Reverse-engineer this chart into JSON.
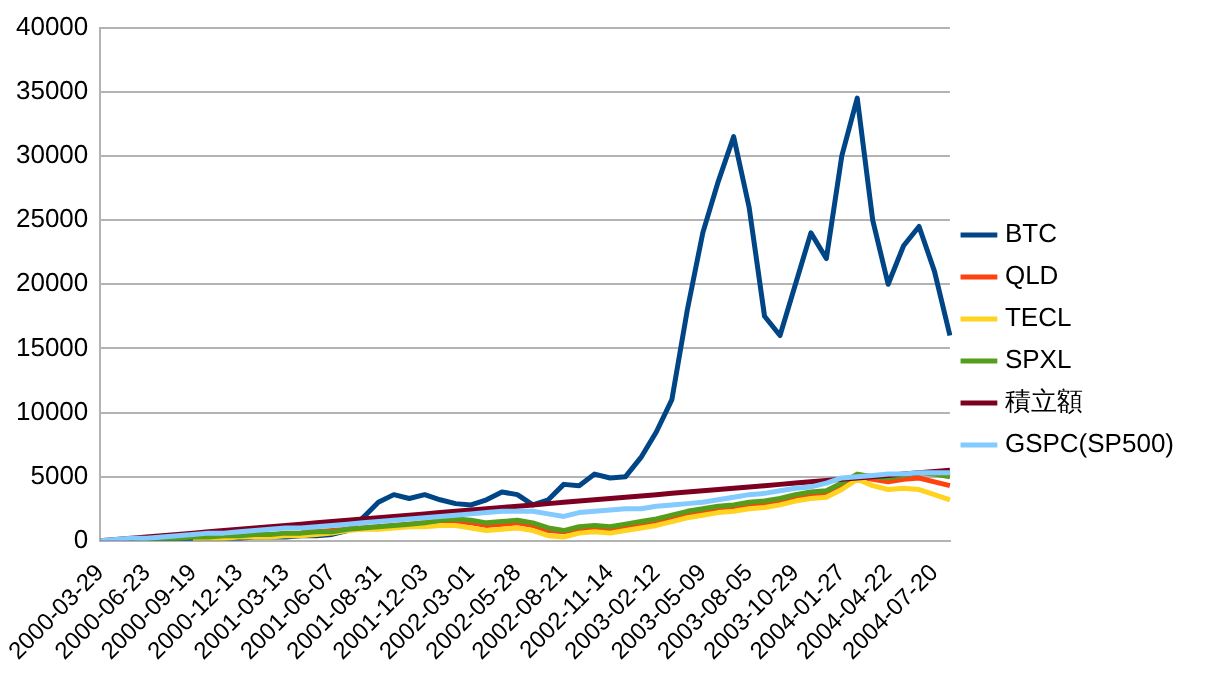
{
  "chart_data": {
    "type": "line",
    "categories": [
      "2000-03-29",
      null,
      null,
      "2000-06-23",
      null,
      null,
      "2000-09-19",
      null,
      null,
      "2000-12-13",
      null,
      null,
      "2001-03-13",
      null,
      null,
      "2001-06-07",
      null,
      null,
      "2001-08-31",
      null,
      null,
      "2001-12-03",
      null,
      null,
      "2002-03-01",
      null,
      null,
      "2002-05-28",
      null,
      null,
      "2002-08-21",
      null,
      null,
      "2002-11-14",
      null,
      null,
      "2003-02-12",
      null,
      null,
      "2003-05-09",
      null,
      null,
      "2003-08-05",
      null,
      null,
      "2003-10-29",
      null,
      null,
      "2004-01-27",
      null,
      null,
      "2004-04-22",
      null,
      null,
      "2004-07-20",
      null
    ],
    "series": [
      {
        "name": "BTC",
        "color": "#004586",
        "values": [
          0,
          0,
          0,
          100,
          100,
          100,
          200,
          200,
          200,
          200,
          300,
          300,
          300,
          400,
          400,
          500,
          800,
          1800,
          3000,
          3600,
          3300,
          3600,
          3200,
          2900,
          2800,
          3200,
          3800,
          3600,
          2800,
          3200,
          4400,
          4300,
          5200,
          4900,
          5000,
          6500,
          8500,
          11000,
          18000,
          24000,
          28000,
          31500,
          26000,
          17500,
          16000,
          20000,
          24000,
          22000,
          30000,
          34500,
          25000,
          20000,
          23000,
          24500,
          21000,
          16000
        ]
      },
      {
        "name": "QLD",
        "color": "#ff420e",
        "values": [
          null,
          null,
          null,
          null,
          null,
          null,
          null,
          null,
          null,
          null,
          null,
          null,
          null,
          700,
          700,
          800,
          900,
          1000,
          1100,
          1200,
          1300,
          1400,
          1500,
          1500,
          1400,
          1200,
          1300,
          1400,
          1200,
          800,
          700,
          900,
          1000,
          900,
          1100,
          1300,
          1500,
          1800,
          2100,
          2300,
          2500,
          2600,
          2800,
          2900,
          3100,
          3400,
          3600,
          3700,
          4300,
          5000,
          4800,
          4600,
          4800,
          4900,
          4600,
          4300
        ]
      },
      {
        "name": "TECL",
        "color": "#ffd320",
        "values": [
          null,
          null,
          null,
          null,
          null,
          null,
          200,
          200,
          200,
          300,
          300,
          300,
          400,
          400,
          500,
          600,
          800,
          900,
          900,
          1000,
          1100,
          1100,
          1200,
          1200,
          1000,
          800,
          900,
          1000,
          800,
          400,
          300,
          600,
          700,
          600,
          800,
          1000,
          1200,
          1500,
          1800,
          2000,
          2200,
          2300,
          2500,
          2600,
          2800,
          3100,
          3300,
          3400,
          4000,
          4800,
          4300,
          4000,
          4100,
          4000,
          3600,
          3200
        ]
      },
      {
        "name": "SPXL",
        "color": "#579d1c",
        "values": [
          null,
          null,
          100,
          100,
          200,
          200,
          300,
          300,
          400,
          400,
          500,
          500,
          600,
          600,
          700,
          700,
          900,
          1000,
          1100,
          1200,
          1300,
          1400,
          1600,
          1700,
          1600,
          1400,
          1500,
          1600,
          1400,
          1000,
          800,
          1100,
          1200,
          1100,
          1300,
          1500,
          1700,
          2000,
          2300,
          2500,
          2700,
          2800,
          3000,
          3100,
          3300,
          3600,
          3800,
          3900,
          4500,
          5200,
          5000,
          4900,
          5100,
          5300,
          5200,
          5000
        ]
      },
      {
        "name": "積立額",
        "color": "#7e0021",
        "values": [
          0,
          100,
          200,
          300,
          400,
          500,
          600,
          700,
          800,
          900,
          1000,
          1100,
          1200,
          1300,
          1400,
          1500,
          1600,
          1700,
          1800,
          1900,
          2000,
          2100,
          2200,
          2300,
          2400,
          2500,
          2600,
          2700,
          2800,
          2900,
          3000,
          3100,
          3200,
          3300,
          3400,
          3500,
          3600,
          3700,
          3800,
          3900,
          4000,
          4100,
          4200,
          4300,
          4400,
          4500,
          4600,
          4700,
          4800,
          4900,
          5000,
          5100,
          5200,
          5300,
          5400,
          5500
        ]
      },
      {
        "name": "GSPC(SP500)",
        "color": "#83caff",
        "values": [
          0,
          100,
          200,
          200,
          300,
          400,
          500,
          600,
          600,
          700,
          800,
          900,
          1000,
          1000,
          1100,
          1200,
          1300,
          1400,
          1500,
          1600,
          1700,
          1800,
          1900,
          2000,
          2100,
          2200,
          2300,
          2300,
          2300,
          2100,
          1900,
          2200,
          2300,
          2400,
          2500,
          2500,
          2700,
          2800,
          2900,
          3000,
          3200,
          3400,
          3600,
          3700,
          3900,
          4100,
          4200,
          4500,
          4900,
          5000,
          5100,
          5200,
          5200,
          5300,
          5300,
          5300
        ]
      }
    ],
    "ylim": [
      0,
      40000
    ],
    "yticks": [
      0,
      5000,
      10000,
      15000,
      20000,
      25000,
      30000,
      35000,
      40000
    ],
    "grid": "y",
    "legend": "right",
    "marker": "none",
    "line_style": "solid"
  }
}
